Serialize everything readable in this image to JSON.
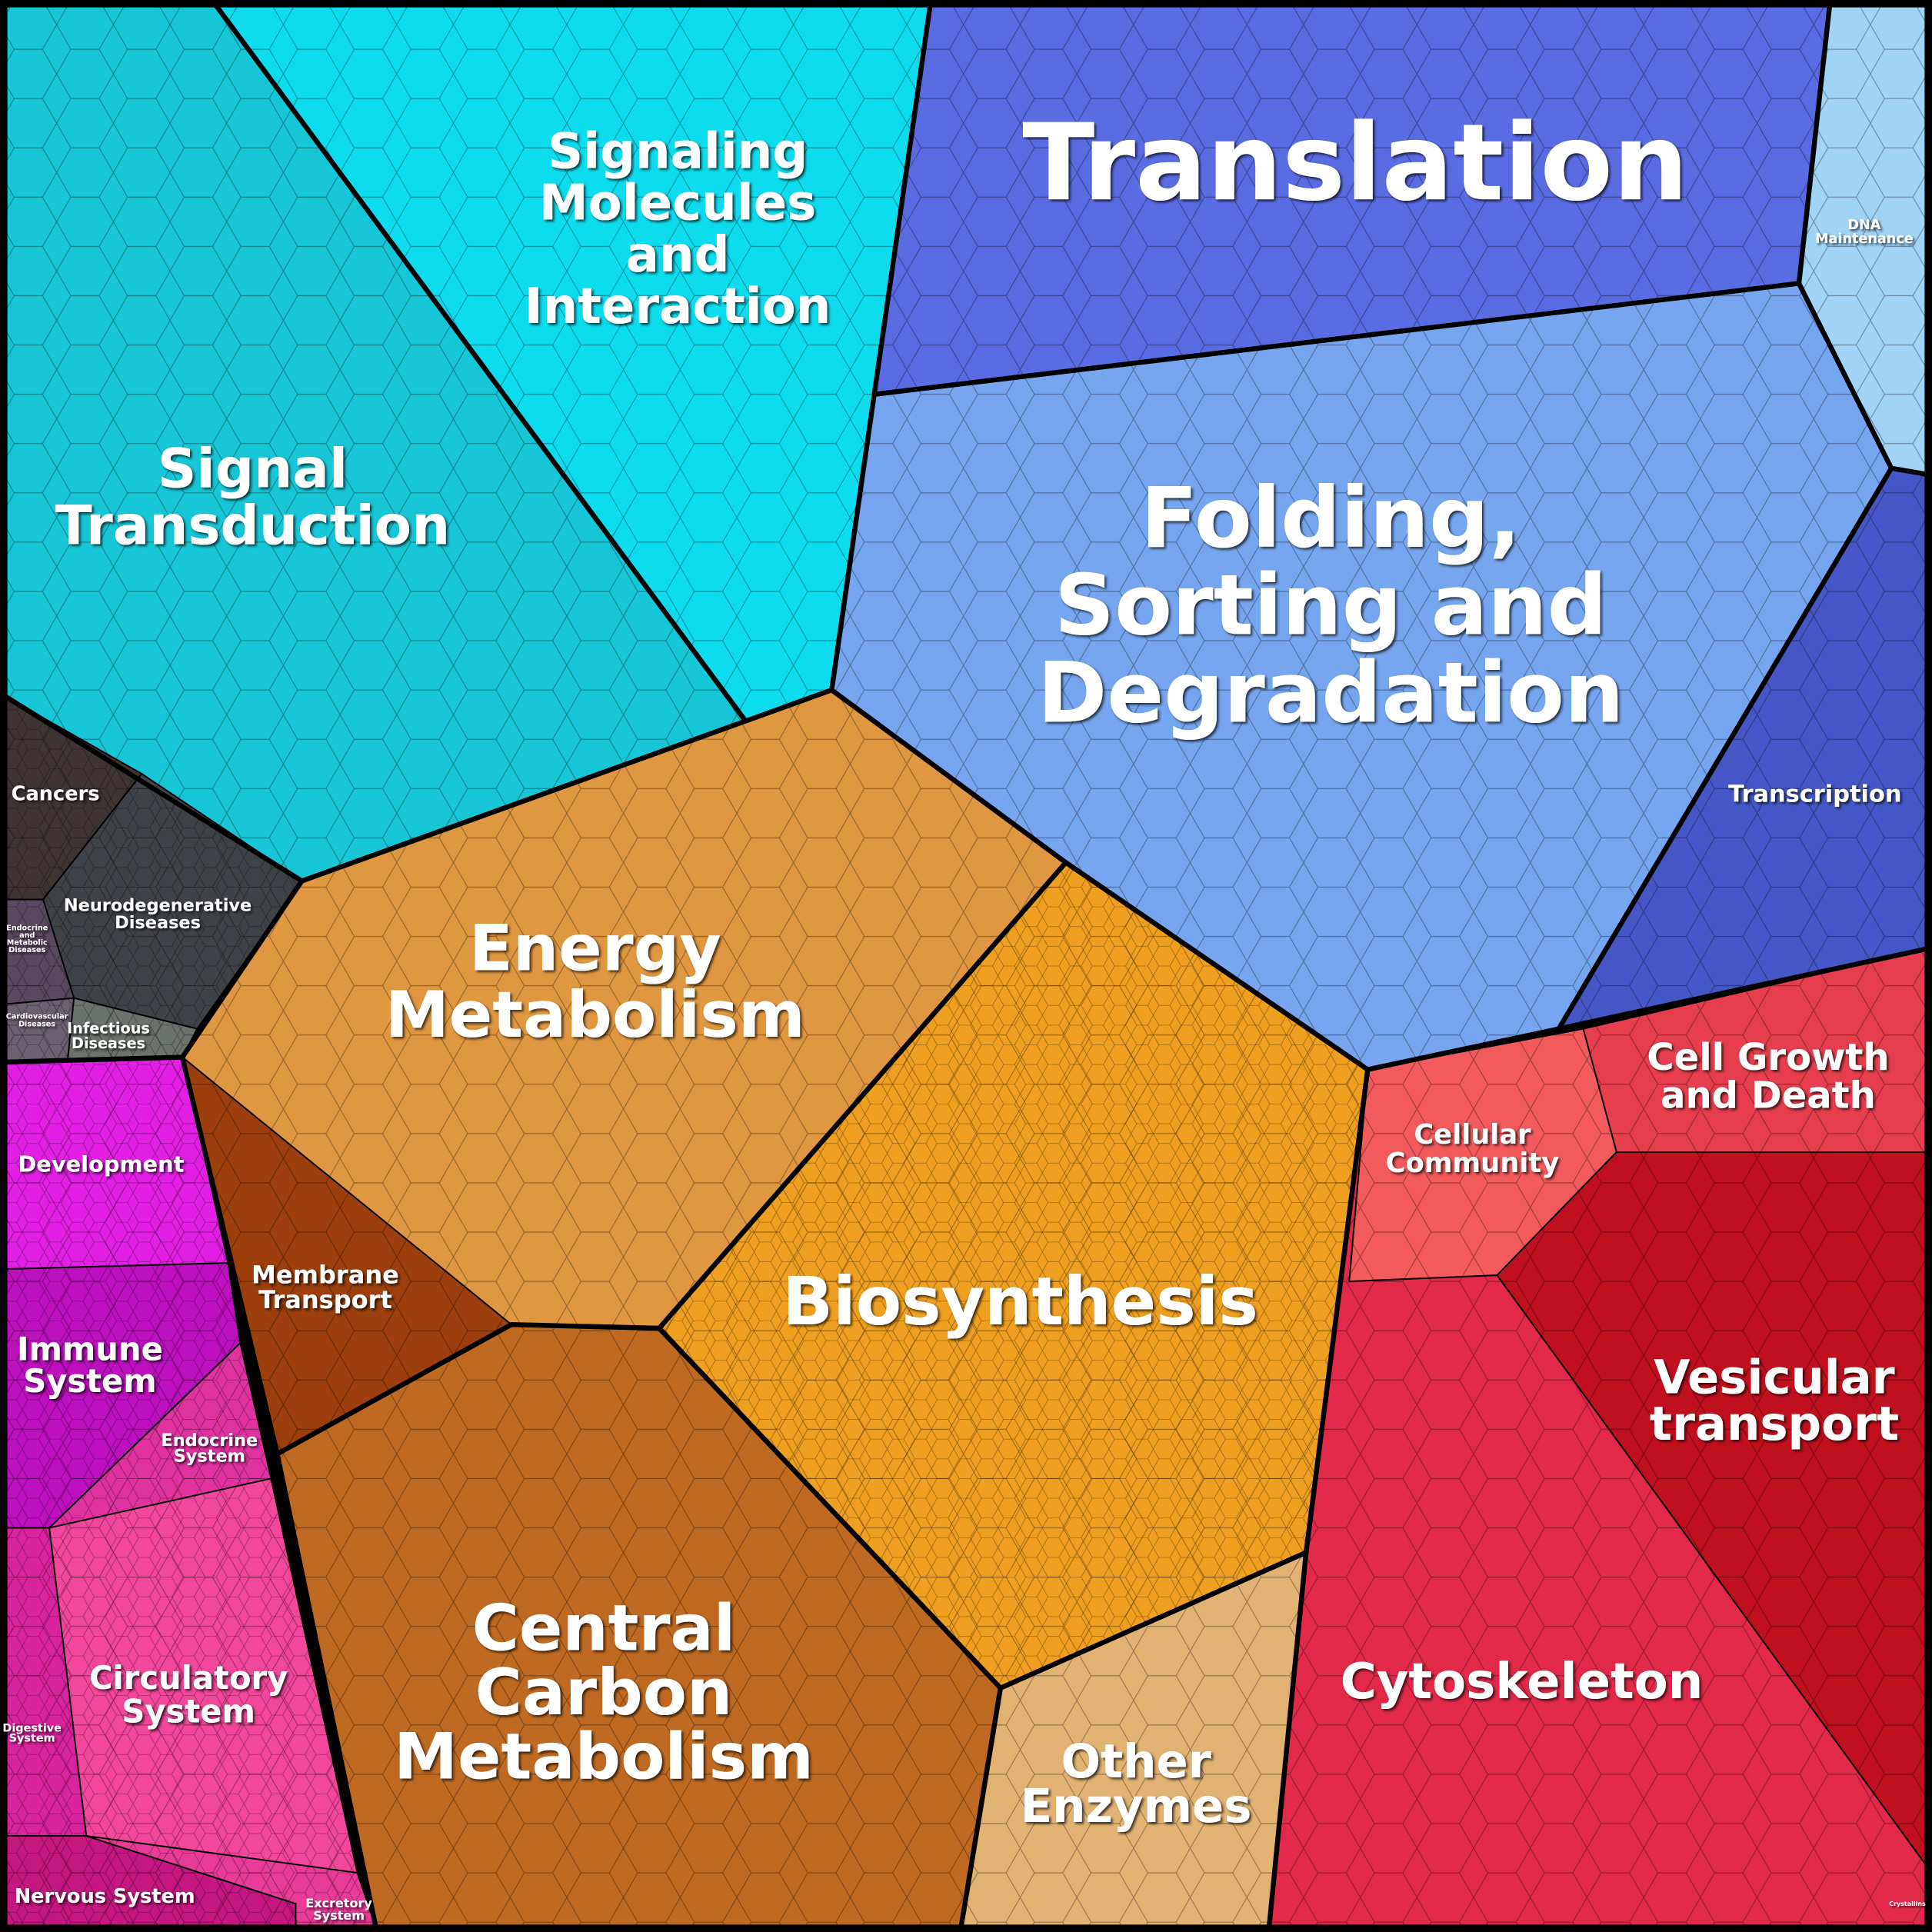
{
  "regions": [
    {
      "label": [
        "Signal",
        "Transduction"
      ]
    },
    {
      "label": [
        "Signaling",
        "Molecules",
        "and",
        "Interaction"
      ]
    },
    {
      "label": [
        "Translation"
      ]
    },
    {
      "label": [
        "DNA",
        "Maintenance"
      ]
    },
    {
      "label": [
        "Folding,",
        "Sorting and",
        "Degradation"
      ]
    },
    {
      "label": [
        "Transcription"
      ]
    },
    {
      "label": [
        "Cancers"
      ]
    },
    {
      "label": [
        "Neurodegenerative",
        "Diseases"
      ]
    },
    {
      "label": [
        "Endocrine",
        "and",
        "Metabolic",
        "Diseases"
      ]
    },
    {
      "label": [
        "Cardiovascular",
        "Diseases"
      ]
    },
    {
      "label": [
        "Infectious",
        "Diseases"
      ]
    },
    {
      "label": [
        "Energy",
        "Metabolism"
      ]
    },
    {
      "label": [
        "Membrane",
        "Transport"
      ]
    },
    {
      "label": [
        "Biosynthesis"
      ]
    },
    {
      "label": [
        "Development"
      ]
    },
    {
      "label": [
        "Immune",
        "System"
      ]
    },
    {
      "label": [
        "Endocrine",
        "System"
      ]
    },
    {
      "label": [
        "Circulatory",
        "System"
      ]
    },
    {
      "label": [
        "Digestive",
        "System"
      ]
    },
    {
      "label": [
        "Nervous System"
      ]
    },
    {
      "label": [
        "Excretory",
        "System"
      ]
    },
    {
      "label": [
        "Central",
        "Carbon",
        "Metabolism"
      ]
    },
    {
      "label": [
        "Other",
        "Enzymes"
      ]
    },
    {
      "label": [
        "Cellular",
        "Community"
      ]
    },
    {
      "label": [
        "Cell Growth",
        "and Death"
      ]
    },
    {
      "label": [
        "Vesicular",
        "transport"
      ]
    },
    {
      "label": [
        "Cytoskeleton"
      ]
    },
    {
      "label": [
        "Crystallins"
      ]
    }
  ]
}
